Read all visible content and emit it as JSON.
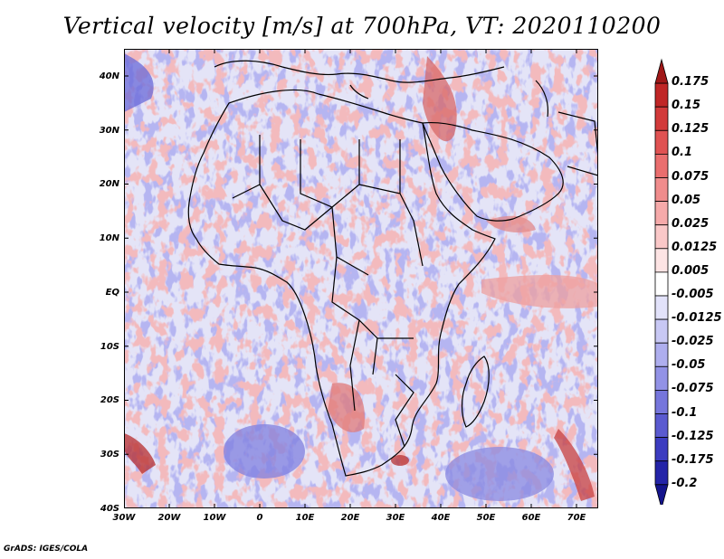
{
  "title": "Vertical velocity [m/s] at 700hPa, VT: 2020110200",
  "latitude_labels": [
    "40N",
    "30N",
    "20N",
    "10N",
    "EQ",
    "10S",
    "20S",
    "30S",
    "40S"
  ],
  "longitude_labels": [
    "30W",
    "20W",
    "10W",
    "0",
    "10E",
    "20E",
    "30E",
    "40E",
    "50E",
    "60E",
    "70E"
  ],
  "colorbar": {
    "labels": [
      "0.175",
      "0.15",
      "0.125",
      "0.1",
      "0.075",
      "0.05",
      "0.025",
      "0.0125",
      "0.005",
      "-0.005",
      "-0.0125",
      "-0.025",
      "-0.05",
      "-0.075",
      "-0.1",
      "-0.125",
      "-0.175",
      "-0.2"
    ],
    "colors": [
      "#a01818",
      "#c02626",
      "#d23a3a",
      "#e05252",
      "#ea6e6e",
      "#f08c8c",
      "#f6aaaa",
      "#fac8c8",
      "#fde4e4",
      "#ffffff",
      "#e2e2fa",
      "#c8c8f4",
      "#aeaeee",
      "#9292e6",
      "#7676dc",
      "#5a5ad0",
      "#3c3cc0",
      "#2424a8",
      "#14148c"
    ]
  },
  "credit": "GrADS: IGES/COLA"
}
